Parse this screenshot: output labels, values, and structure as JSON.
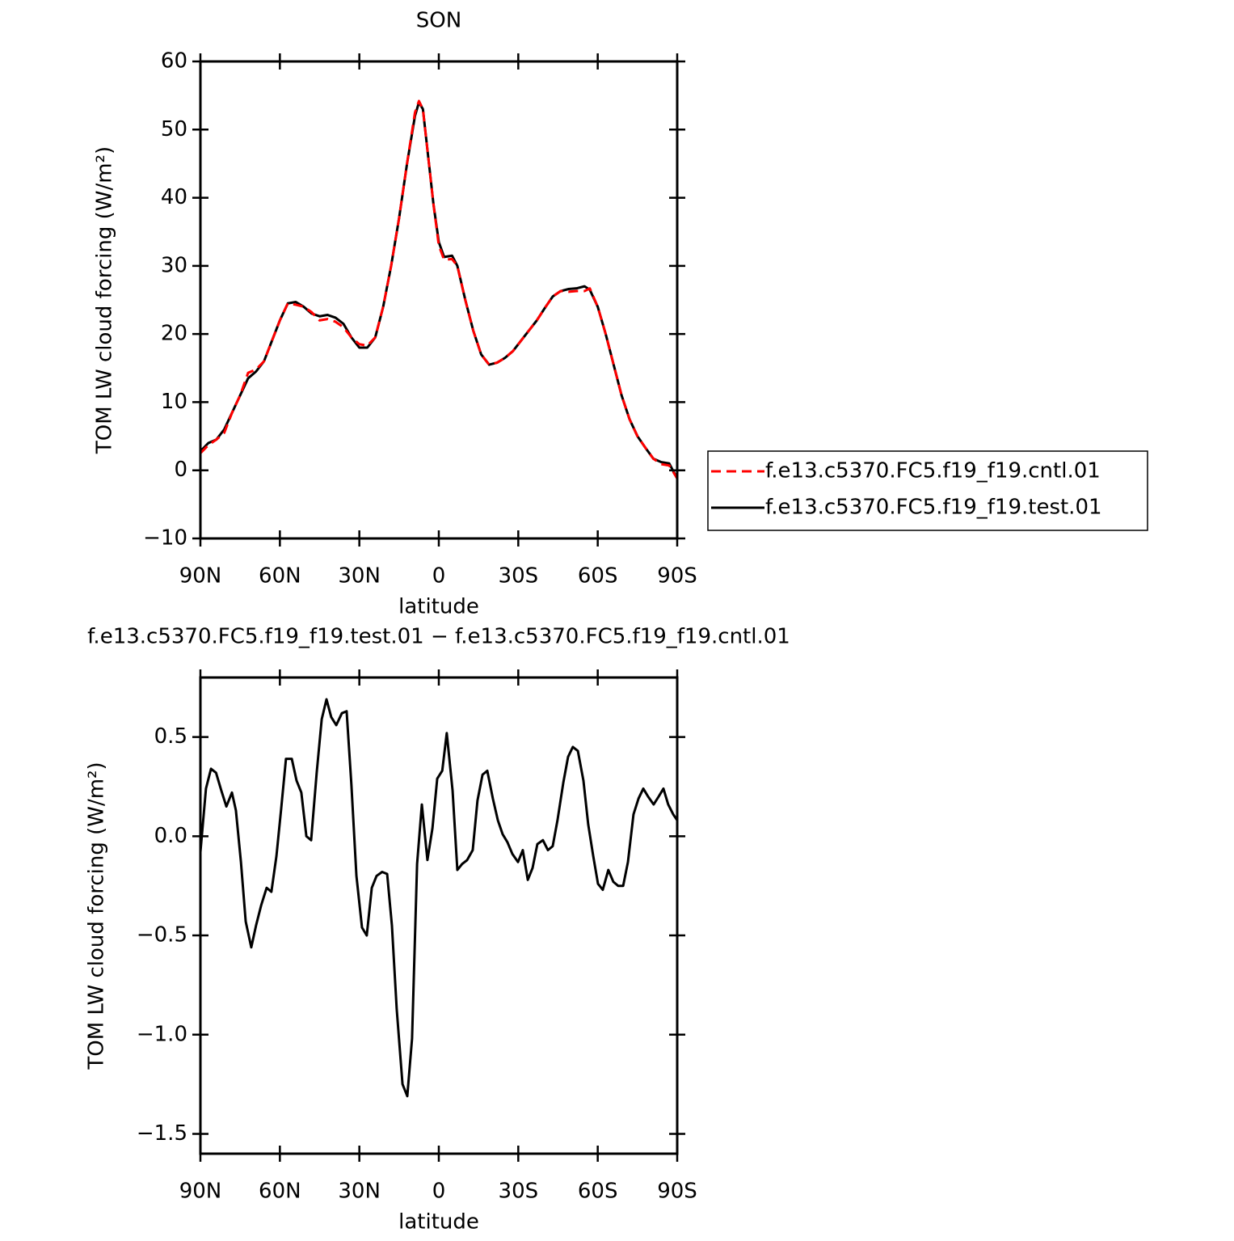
{
  "chart_data": [
    {
      "type": "line",
      "title": "SON",
      "xlabel": "latitude",
      "ylabel": "TOM LW cloud forcing (W/m²)",
      "x": [
        90,
        87,
        84,
        81,
        78,
        75,
        72,
        69,
        66,
        63,
        60,
        57,
        54,
        51,
        48,
        45,
        42,
        39,
        36,
        33,
        30,
        27,
        24,
        21,
        18,
        15,
        12,
        9,
        7.5,
        6,
        4,
        2,
        0,
        -2,
        -5,
        -7,
        -10,
        -13,
        -16,
        -19,
        -22,
        -25,
        -28,
        -31,
        -34,
        -37,
        -40,
        -43,
        -46,
        -49,
        -52,
        -55,
        -57,
        -60,
        -63,
        -66,
        -69,
        -72,
        -75,
        -78,
        -81,
        -84,
        -87,
        -90
      ],
      "series": [
        {
          "name": "f.e13.c5370.FC5.f19_f19.cntl.01",
          "color": "#ff0000",
          "line_style": "dashed",
          "values": [
            2.5,
            3.7,
            4.5,
            5.5,
            8.5,
            11,
            14.3,
            14.8,
            16,
            19,
            22,
            24.5,
            24.3,
            24,
            23.2,
            22,
            22.2,
            21.8,
            21,
            19.5,
            18.5,
            18.3,
            19.5,
            24,
            30,
            37,
            45,
            52.5,
            54.2,
            53,
            46,
            39,
            33,
            30.9,
            31,
            30,
            25,
            20.5,
            17,
            15.5,
            15.8,
            16.5,
            17.5,
            19,
            20.5,
            22,
            23.8,
            25.5,
            26.3,
            26.2,
            26.3,
            26.3,
            26.7,
            24,
            20,
            15.5,
            11,
            7.5,
            5,
            3.3,
            1.7,
            0.9,
            0.7,
            -1.2
          ]
        },
        {
          "name": "f.e13.c5370.FC5.f19_f19.test.01",
          "color": "#000000",
          "line_style": "solid",
          "values": [
            2.8,
            4,
            4.5,
            6,
            8.5,
            11,
            13.5,
            14.5,
            16,
            19,
            22,
            24.5,
            24.7,
            24,
            23,
            22.6,
            22.8,
            22.4,
            21.5,
            19.5,
            18,
            18,
            19.5,
            24,
            30,
            37,
            45,
            52,
            54,
            53,
            46,
            39,
            33.5,
            31.3,
            31.5,
            30,
            25,
            20.5,
            17,
            15.5,
            15.8,
            16.5,
            17.5,
            19,
            20.5,
            22,
            23.8,
            25.5,
            26.3,
            26.6,
            26.7,
            27,
            26.5,
            24,
            20,
            15.5,
            11,
            7.5,
            5,
            3.3,
            1.7,
            1.2,
            1,
            -1.2
          ]
        }
      ],
      "xlim": [
        90,
        -90
      ],
      "xticks": [
        {
          "value": 90,
          "label": "90N"
        },
        {
          "value": 60,
          "label": "60N"
        },
        {
          "value": 30,
          "label": "30N"
        },
        0,
        {
          "value": -30,
          "label": "30S"
        },
        {
          "value": -60,
          "label": "60S"
        },
        {
          "value": -90,
          "label": "90S"
        }
      ],
      "ylim": [
        -10,
        60
      ],
      "yticks": [
        {
          "value": -10,
          "label": "−10"
        },
        0,
        10,
        20,
        30,
        40,
        50,
        60
      ],
      "legend": "right"
    },
    {
      "type": "line",
      "title": "f.e13.c5370.FC5.f19_f19.test.01 − f.e13.c5370.FC5.f19_f19.cntl.01",
      "xlabel": "latitude",
      "ylabel": "TOM LW cloud forcing (W/m²)",
      "x": [
        90,
        87.9,
        86,
        84.1,
        82.1,
        80.2,
        78.1,
        76.6,
        74.7,
        72.9,
        70.8,
        69,
        67.1,
        65,
        63.2,
        61.3,
        59.5,
        57.7,
        55.5,
        53.7,
        51.9,
        50,
        48.2,
        46.1,
        44.2,
        42.4,
        40.6,
        38.7,
        36.6,
        34.8,
        33,
        31.1,
        29,
        27.2,
        25.3,
        23.5,
        21.4,
        19.5,
        17.7,
        15.9,
        13.7,
        11.9,
        10.1,
        8.2,
        6.4,
        4.3,
        2.4,
        0.6,
        -1.3,
        -3,
        -5.2,
        -7,
        -8.8,
        -10.7,
        -12.8,
        -14.6,
        -16.5,
        -18.3,
        -20.4,
        -22.3,
        -24.1,
        -25.9,
        -27.8,
        -29.9,
        -31.7,
        -33.6,
        -35.4,
        -37.2,
        -39.3,
        -41.2,
        -43,
        -44.8,
        -47,
        -48.8,
        -50.6,
        -52.5,
        -54.6,
        -56.4,
        -58.3,
        -60.1,
        -61.9,
        -64,
        -65.9,
        -67.7,
        -69.6,
        -71.4,
        -73.5,
        -75.4,
        -77.2,
        -79,
        -81.1,
        -83,
        -84.8,
        -86.6,
        -88.5,
        -90
      ],
      "values": [
        -0.08,
        0.24,
        0.34,
        0.32,
        0.23,
        0.15,
        0.22,
        0.13,
        -0.13,
        -0.43,
        -0.56,
        -0.45,
        -0.35,
        -0.26,
        -0.28,
        -0.1,
        0.14,
        0.39,
        0.39,
        0.28,
        0.22,
        0,
        -0.02,
        0.32,
        0.59,
        0.69,
        0.6,
        0.56,
        0.62,
        0.63,
        0.26,
        -0.2,
        -0.46,
        -0.5,
        -0.26,
        -0.2,
        -0.18,
        -0.19,
        -0.45,
        -0.87,
        -1.25,
        -1.31,
        -1.02,
        -0.14,
        0.16,
        -0.12,
        0.04,
        0.29,
        0.33,
        0.52,
        0.23,
        -0.17,
        -0.14,
        -0.12,
        -0.07,
        0.18,
        0.31,
        0.33,
        0.19,
        0.08,
        0.01,
        -0.03,
        -0.09,
        -0.13,
        -0.07,
        -0.22,
        -0.16,
        -0.04,
        -0.02,
        -0.07,
        -0.05,
        0.08,
        0.27,
        0.4,
        0.45,
        0.43,
        0.28,
        0.06,
        -0.1,
        -0.24,
        -0.27,
        -0.17,
        -0.23,
        -0.25,
        -0.25,
        -0.13,
        0.11,
        0.19,
        0.24,
        0.2,
        0.16,
        0.2,
        0.24,
        0.16,
        0.11,
        0.08
      ],
      "color": "#000000",
      "xlim": [
        90,
        -90
      ],
      "xticks": [
        {
          "value": 90,
          "label": "90N"
        },
        {
          "value": 60,
          "label": "60N"
        },
        {
          "value": 30,
          "label": "30N"
        },
        0,
        {
          "value": -30,
          "label": "30S"
        },
        {
          "value": -60,
          "label": "60S"
        },
        {
          "value": -90,
          "label": "90S"
        }
      ],
      "ylim": [
        -1.6,
        0.8
      ],
      "yticks": [
        {
          "value": -1.5,
          "label": "−1.5"
        },
        {
          "value": -1,
          "label": "−1.0"
        },
        {
          "value": -0.5,
          "label": "−0.5"
        },
        {
          "value": 0,
          "label": "0.0"
        },
        0.5
      ]
    }
  ]
}
